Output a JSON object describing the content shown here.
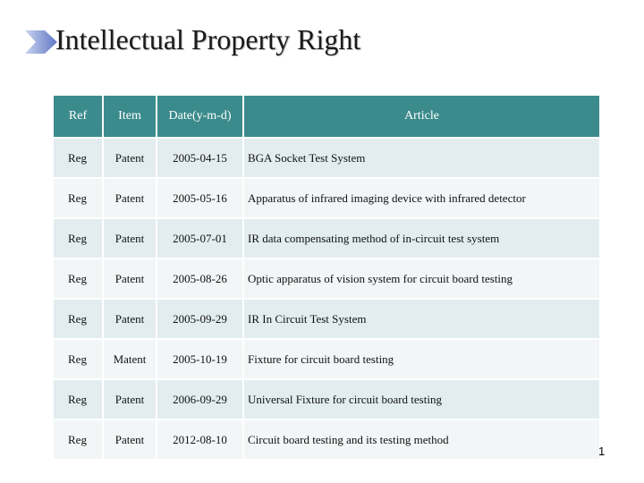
{
  "slide": {
    "title": "Intellectual Property Right",
    "page_number": "1"
  },
  "table": {
    "headers": [
      "Ref",
      "Item",
      "Date(y-m-d)",
      "Article"
    ],
    "rows": [
      [
        "Reg",
        "Patent",
        "2005-04-15",
        "BGA Socket Test System"
      ],
      [
        "Reg",
        "Patent",
        "2005-05-16",
        "Apparatus of infrared imaging device with infrared detector"
      ],
      [
        "Reg",
        "Patent",
        "2005-07-01",
        "IR data compensating method of in-circuit test system"
      ],
      [
        "Reg",
        "Patent",
        "2005-08-26",
        "Optic apparatus of vision system for circuit board testing"
      ],
      [
        "Reg",
        "Patent",
        "2005-09-29",
        "IR In Circuit Test System"
      ],
      [
        "Reg",
        "Matent",
        "2005-10-19",
        "Fixture for circuit board testing"
      ],
      [
        "Reg",
        "Patent",
        "2006-09-29",
        "Universal Fixture for circuit board testing"
      ],
      [
        "Reg",
        "Patent",
        "2012-08-10",
        "Circuit board testing and its testing method"
      ]
    ]
  },
  "colors": {
    "header_bg": "#3c8b8c",
    "row_odd": "#e3edef",
    "row_even": "#f2f6f7",
    "title_arrow": "#6f86c9"
  },
  "icons": {
    "title_bullet": "arrow-bullet-icon"
  }
}
